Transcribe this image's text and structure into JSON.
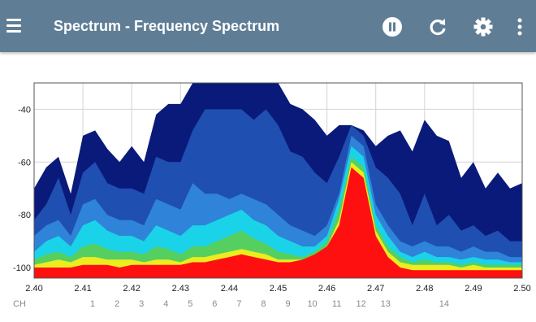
{
  "app_bar": {
    "title": "Spectrum - Frequency Spectrum",
    "background": "#5f7e96",
    "icons": [
      "menu-icon",
      "pause-icon",
      "refresh-icon",
      "gear-icon",
      "more-vert-icon"
    ]
  },
  "chart_data": {
    "type": "area",
    "title": "",
    "xlabel": "",
    "ylabel": "",
    "xlim": [
      2.4,
      2.5
    ],
    "ylim": [
      -104,
      -30
    ],
    "x_ticks": [
      "2.40",
      "2.41",
      "2.42",
      "2.43",
      "2.44",
      "2.45",
      "2.46",
      "2.47",
      "2.48",
      "2.49",
      "2.50"
    ],
    "y_ticks": [
      "-40",
      "-60",
      "-80",
      "-100"
    ],
    "grid": true,
    "channel_axis_label": "CH",
    "channels": [
      {
        "label": "1",
        "freq": 2.412
      },
      {
        "label": "2",
        "freq": 2.417
      },
      {
        "label": "3",
        "freq": 2.422
      },
      {
        "label": "4",
        "freq": 2.427
      },
      {
        "label": "5",
        "freq": 2.432
      },
      {
        "label": "6",
        "freq": 2.437
      },
      {
        "label": "7",
        "freq": 2.442
      },
      {
        "label": "8",
        "freq": 2.447
      },
      {
        "label": "9",
        "freq": 2.452
      },
      {
        "label": "10",
        "freq": 2.457
      },
      {
        "label": "11",
        "freq": 2.462
      },
      {
        "label": "12",
        "freq": 2.467
      },
      {
        "label": "13",
        "freq": 2.472
      },
      {
        "label": "14",
        "freq": 2.484
      }
    ],
    "x": [
      2.4,
      2.4025,
      2.405,
      2.4075,
      2.41,
      2.4125,
      2.415,
      2.4175,
      2.42,
      2.4225,
      2.425,
      2.4275,
      2.43,
      2.4325,
      2.435,
      2.4375,
      2.44,
      2.4425,
      2.445,
      2.4475,
      2.45,
      2.4525,
      2.455,
      2.4575,
      2.46,
      2.4625,
      2.465,
      2.4675,
      2.47,
      2.4725,
      2.475,
      2.4775,
      2.48,
      2.4825,
      2.485,
      2.4875,
      2.49,
      2.4925,
      2.495,
      2.4975,
      2.5
    ],
    "series": [
      {
        "color": "#0a1a7a",
        "values": [
          -70,
          -62,
          -58,
          -72,
          -50,
          -48,
          -55,
          -60,
          -54,
          -60,
          -42,
          -38,
          -38,
          -30,
          -30,
          -30,
          -30,
          -30,
          -30,
          -30,
          -30,
          -38,
          -40,
          -44,
          -50,
          -46,
          -46,
          -48,
          -54,
          -50,
          -48,
          -56,
          -44,
          -50,
          -52,
          -66,
          -60,
          -70,
          -64,
          -70,
          -68
        ]
      },
      {
        "color": "#1f4fb0",
        "values": [
          -82,
          -76,
          -66,
          -80,
          -64,
          -60,
          -68,
          -70,
          -70,
          -72,
          -58,
          -60,
          -60,
          -48,
          -40,
          -40,
          -40,
          -40,
          -44,
          -40,
          -46,
          -56,
          -58,
          -64,
          -68,
          -58,
          -46,
          -50,
          -62,
          -66,
          -72,
          -84,
          -72,
          -84,
          -80,
          -86,
          -84,
          -88,
          -86,
          -90,
          -90
        ]
      },
      {
        "color": "#2f83d8",
        "values": [
          -88,
          -84,
          -82,
          -88,
          -76,
          -74,
          -80,
          -82,
          -82,
          -84,
          -74,
          -76,
          -78,
          -68,
          -72,
          -72,
          -74,
          -72,
          -74,
          -76,
          -80,
          -84,
          -86,
          -88,
          -84,
          -72,
          -50,
          -54,
          -76,
          -84,
          -90,
          -92,
          -90,
          -92,
          -92,
          -94,
          -92,
          -94,
          -94,
          -96,
          -96
        ]
      },
      {
        "color": "#1ad3e8",
        "values": [
          -94,
          -90,
          -88,
          -92,
          -84,
          -82,
          -86,
          -88,
          -88,
          -90,
          -84,
          -86,
          -88,
          -84,
          -84,
          -82,
          -80,
          -78,
          -82,
          -84,
          -88,
          -90,
          -92,
          -92,
          -88,
          -74,
          -54,
          -58,
          -80,
          -88,
          -94,
          -96,
          -94,
          -96,
          -96,
          -97,
          -96,
          -97,
          -97,
          -98,
          -98
        ]
      },
      {
        "color": "#55d060",
        "values": [
          -97,
          -95,
          -94,
          -96,
          -92,
          -91,
          -93,
          -94,
          -94,
          -95,
          -92,
          -93,
          -95,
          -92,
          -92,
          -90,
          -88,
          -86,
          -89,
          -91,
          -94,
          -95,
          -96,
          -94,
          -90,
          -78,
          -58,
          -62,
          -84,
          -92,
          -96,
          -98,
          -97,
          -98,
          -98,
          -99,
          -98,
          -99,
          -99,
          -99,
          -99
        ]
      },
      {
        "color": "#ecec20",
        "values": [
          -99,
          -98,
          -97,
          -98,
          -96,
          -96,
          -97,
          -97,
          -97,
          -98,
          -97,
          -97,
          -98,
          -96,
          -96,
          -95,
          -94,
          -93,
          -94,
          -95,
          -97,
          -97,
          -97,
          -95,
          -92,
          -82,
          -60,
          -64,
          -86,
          -94,
          -98,
          -99,
          -99,
          -99,
          -99,
          -100,
          -99,
          -100,
          -100,
          -100,
          -100
        ]
      },
      {
        "color": "#ff1010",
        "values": [
          -100,
          -100,
          -100,
          -100,
          -99,
          -99,
          -99,
          -100,
          -99,
          -99,
          -99,
          -99,
          -99,
          -98,
          -98,
          -97,
          -96,
          -95,
          -96,
          -97,
          -98,
          -98,
          -97,
          -95,
          -92,
          -84,
          -62,
          -66,
          -88,
          -96,
          -100,
          -101,
          -101,
          -101,
          -101,
          -101,
          -101,
          -101,
          -101,
          -101,
          -101
        ]
      }
    ]
  }
}
